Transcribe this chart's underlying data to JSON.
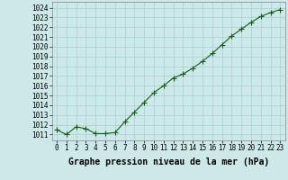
{
  "x": [
    0,
    1,
    2,
    3,
    4,
    5,
    6,
    7,
    8,
    9,
    10,
    11,
    12,
    13,
    14,
    15,
    16,
    17,
    18,
    19,
    20,
    21,
    22,
    23
  ],
  "y": [
    1011.5,
    1011.0,
    1011.8,
    1011.6,
    1011.1,
    1011.1,
    1011.2,
    1012.3,
    1013.3,
    1014.3,
    1015.3,
    1016.0,
    1016.8,
    1017.2,
    1017.8,
    1018.5,
    1019.3,
    1020.2,
    1021.1,
    1021.8,
    1022.5,
    1023.1,
    1023.5,
    1023.8
  ],
  "line_color": "#1a5c1a",
  "marker_color": "#1a5c1a",
  "bg_color": "#cce8e8",
  "grid_color": "#a8cece",
  "xlabel": "Graphe pression niveau de la mer (hPa)",
  "xlabel_fontsize": 7,
  "ylabel_labels": [
    "1011",
    "1012",
    "1013",
    "1014",
    "1015",
    "1016",
    "1017",
    "1018",
    "1019",
    "1020",
    "1021",
    "1022",
    "1023",
    "1024"
  ],
  "ylim": [
    1010.4,
    1024.6
  ],
  "xlim": [
    -0.5,
    23.5
  ],
  "xticks": [
    0,
    1,
    2,
    3,
    4,
    5,
    6,
    7,
    8,
    9,
    10,
    11,
    12,
    13,
    14,
    15,
    16,
    17,
    18,
    19,
    20,
    21,
    22,
    23
  ],
  "yticks": [
    1011,
    1012,
    1013,
    1014,
    1015,
    1016,
    1017,
    1018,
    1019,
    1020,
    1021,
    1022,
    1023,
    1024
  ],
  "tick_fontsize": 5.5,
  "marker_size": 2.5,
  "line_width": 0.8
}
